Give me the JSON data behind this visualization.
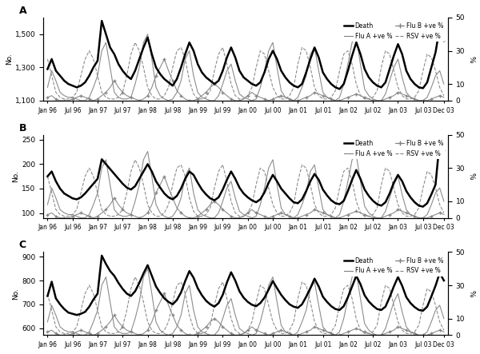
{
  "title_A": "A",
  "title_B": "B",
  "title_C": "C",
  "ylabel_left": "No.",
  "ylabel_right": "%",
  "panel_A": {
    "ylim_left": [
      1100,
      1600
    ],
    "yticks_left": [
      1100,
      1300,
      1500
    ],
    "ylim_right": [
      0,
      50
    ],
    "yticks_right": [
      0,
      10,
      30,
      50
    ]
  },
  "panel_B": {
    "ylim_left": [
      90,
      260
    ],
    "yticks_left": [
      100,
      150,
      200,
      250
    ],
    "ylim_right": [
      0,
      50
    ],
    "yticks_right": [
      0,
      10,
      30,
      50
    ]
  },
  "panel_C": {
    "ylim_left": [
      570,
      920
    ],
    "yticks_left": [
      600,
      700,
      800,
      900
    ],
    "ylim_right": [
      0,
      50
    ],
    "yticks_right": [
      0,
      10,
      30,
      50
    ]
  },
  "xtick_labels": [
    "Jan 96",
    "Jul 96",
    "Jan 97",
    "Jul 97",
    "Jan 98",
    "Jul 98",
    "Jan 99",
    "Jul 99",
    "Jan 00",
    "Jul 00",
    "Jan 01",
    "Jul 01",
    "Jan 02",
    "Jul 02",
    "Jan 03",
    "Jul 03",
    "Dec 03"
  ],
  "legend": {
    "col1": [
      "Death",
      "Flu A +ve %"
    ],
    "col2": [
      "Flu B +ve %",
      "RSV +ve %"
    ]
  },
  "flu_a": [
    8,
    18,
    12,
    5,
    3,
    2,
    2,
    1,
    0,
    0,
    2,
    8,
    15,
    30,
    35,
    20,
    5,
    2,
    1,
    1,
    2,
    10,
    20,
    35,
    40,
    25,
    8,
    3,
    1,
    0,
    1,
    5,
    12,
    25,
    30,
    15,
    5,
    2,
    1,
    0,
    0,
    3,
    10,
    18,
    22,
    12,
    4,
    2,
    1,
    0,
    1,
    8,
    18,
    30,
    35,
    20,
    6,
    2,
    1,
    0,
    2,
    8,
    15,
    28,
    32,
    18,
    5,
    2,
    1,
    0,
    2,
    10,
    22,
    35,
    38,
    22,
    7,
    3,
    1,
    0,
    0,
    4,
    12,
    20,
    25,
    14,
    5,
    2,
    1,
    0,
    0,
    2,
    8,
    15,
    18,
    10,
    3,
    1
  ],
  "flu_b": [
    2,
    3,
    1,
    0,
    0,
    0,
    1,
    2,
    3,
    2,
    1,
    0,
    1,
    3,
    5,
    8,
    12,
    8,
    5,
    3,
    2,
    1,
    0,
    1,
    3,
    8,
    15,
    20,
    25,
    18,
    12,
    6,
    3,
    1,
    0,
    0,
    1,
    3,
    5,
    8,
    10,
    8,
    5,
    3,
    1,
    0,
    0,
    1,
    3,
    5,
    3,
    2,
    1,
    0,
    1,
    2,
    3,
    2,
    1,
    0,
    0,
    1,
    2,
    3,
    5,
    4,
    3,
    2,
    1,
    0,
    0,
    1,
    2,
    3,
    4,
    3,
    2,
    1,
    0,
    0,
    0,
    1,
    2,
    3,
    5,
    4,
    3,
    2,
    1,
    0,
    0,
    0,
    1,
    2,
    3,
    2,
    1,
    0
  ],
  "rsv": [
    25,
    15,
    5,
    2,
    1,
    1,
    2,
    5,
    15,
    25,
    30,
    25,
    15,
    5,
    2,
    1,
    1,
    2,
    5,
    15,
    28,
    35,
    30,
    20,
    8,
    3,
    1,
    1,
    3,
    8,
    20,
    30,
    32,
    25,
    12,
    4,
    1,
    1,
    2,
    6,
    18,
    28,
    32,
    22,
    10,
    3,
    1,
    1,
    3,
    8,
    20,
    30,
    28,
    18,
    8,
    3,
    1,
    1,
    3,
    8,
    22,
    32,
    30,
    20,
    8,
    3,
    1,
    1,
    2,
    6,
    18,
    28,
    30,
    22,
    10,
    3,
    1,
    1,
    2,
    6,
    20,
    30,
    28,
    18,
    8,
    3,
    1,
    1,
    2,
    6,
    18,
    28,
    26,
    18,
    8,
    3,
    1,
    1
  ],
  "death_A": [
    1290,
    1350,
    1280,
    1250,
    1220,
    1200,
    1190,
    1180,
    1190,
    1210,
    1250,
    1300,
    1340,
    1580,
    1500,
    1420,
    1380,
    1320,
    1280,
    1250,
    1230,
    1280,
    1350,
    1420,
    1480,
    1380,
    1300,
    1260,
    1230,
    1210,
    1190,
    1230,
    1300,
    1380,
    1450,
    1400,
    1320,
    1270,
    1240,
    1220,
    1200,
    1220,
    1280,
    1360,
    1420,
    1360,
    1280,
    1240,
    1220,
    1200,
    1190,
    1210,
    1270,
    1350,
    1400,
    1350,
    1280,
    1240,
    1210,
    1190,
    1180,
    1200,
    1270,
    1350,
    1420,
    1360,
    1270,
    1230,
    1200,
    1180,
    1170,
    1200,
    1280,
    1370,
    1450,
    1380,
    1290,
    1240,
    1210,
    1190,
    1180,
    1210,
    1290,
    1370,
    1440,
    1380,
    1280,
    1230,
    1200,
    1180,
    1175,
    1210,
    1300,
    1390,
    1540,
    1460,
    1310,
    1250
  ],
  "death_B": [
    175,
    185,
    165,
    150,
    140,
    135,
    130,
    128,
    132,
    140,
    150,
    160,
    170,
    210,
    200,
    190,
    180,
    170,
    160,
    152,
    148,
    155,
    170,
    185,
    200,
    185,
    165,
    152,
    140,
    132,
    128,
    135,
    150,
    170,
    185,
    178,
    162,
    148,
    138,
    130,
    126,
    132,
    148,
    168,
    185,
    170,
    152,
    140,
    132,
    126,
    122,
    128,
    142,
    162,
    178,
    165,
    150,
    140,
    130,
    122,
    120,
    128,
    145,
    165,
    180,
    168,
    148,
    136,
    126,
    120,
    118,
    125,
    145,
    168,
    188,
    170,
    148,
    135,
    125,
    118,
    115,
    122,
    140,
    162,
    178,
    165,
    145,
    132,
    122,
    115,
    113,
    120,
    138,
    158,
    248,
    228,
    185,
    155
  ],
  "death_C": [
    735,
    795,
    725,
    700,
    680,
    665,
    660,
    655,
    660,
    668,
    690,
    720,
    745,
    905,
    870,
    840,
    820,
    790,
    765,
    745,
    735,
    755,
    790,
    830,
    865,
    820,
    775,
    748,
    725,
    710,
    700,
    718,
    750,
    798,
    840,
    812,
    768,
    738,
    715,
    700,
    690,
    705,
    740,
    792,
    835,
    800,
    755,
    728,
    710,
    698,
    692,
    705,
    728,
    762,
    798,
    768,
    740,
    718,
    700,
    690,
    685,
    700,
    732,
    768,
    808,
    775,
    732,
    710,
    692,
    680,
    676,
    692,
    730,
    775,
    820,
    785,
    738,
    712,
    694,
    680,
    676,
    690,
    730,
    775,
    815,
    778,
    730,
    705,
    688,
    676,
    673,
    690,
    733,
    778,
    832,
    800,
    755,
    728
  ]
}
